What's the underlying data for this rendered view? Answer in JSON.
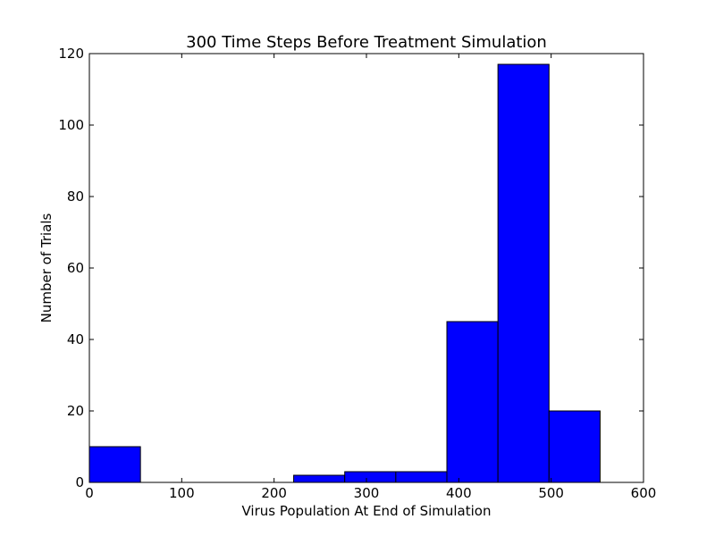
{
  "chart_data": {
    "type": "bar",
    "title": "300 Time Steps Before Treatment Simulation",
    "xlabel": "Virus Population At End of Simulation",
    "ylabel": "Number of Trials",
    "xlim": [
      0,
      600
    ],
    "ylim": [
      0,
      120
    ],
    "x_ticks": [
      "0",
      "100",
      "200",
      "300",
      "400",
      "500",
      "600"
    ],
    "y_ticks": [
      "0",
      "20",
      "40",
      "60",
      "80",
      "100",
      "120"
    ],
    "bins": [
      {
        "x0": 0,
        "x1": 55.3,
        "count": 10
      },
      {
        "x0": 55.3,
        "x1": 110.6,
        "count": 0
      },
      {
        "x0": 110.6,
        "x1": 165.9,
        "count": 0
      },
      {
        "x0": 165.9,
        "x1": 221.2,
        "count": 0
      },
      {
        "x0": 221.2,
        "x1": 276.5,
        "count": 2
      },
      {
        "x0": 276.5,
        "x1": 331.8,
        "count": 3
      },
      {
        "x0": 331.8,
        "x1": 387.1,
        "count": 3
      },
      {
        "x0": 387.1,
        "x1": 442.4,
        "count": 45
      },
      {
        "x0": 442.4,
        "x1": 497.7,
        "count": 117
      },
      {
        "x0": 497.7,
        "x1": 553.0,
        "count": 20
      }
    ],
    "bar_color": "#0000ff",
    "grid": false,
    "legend": false
  }
}
